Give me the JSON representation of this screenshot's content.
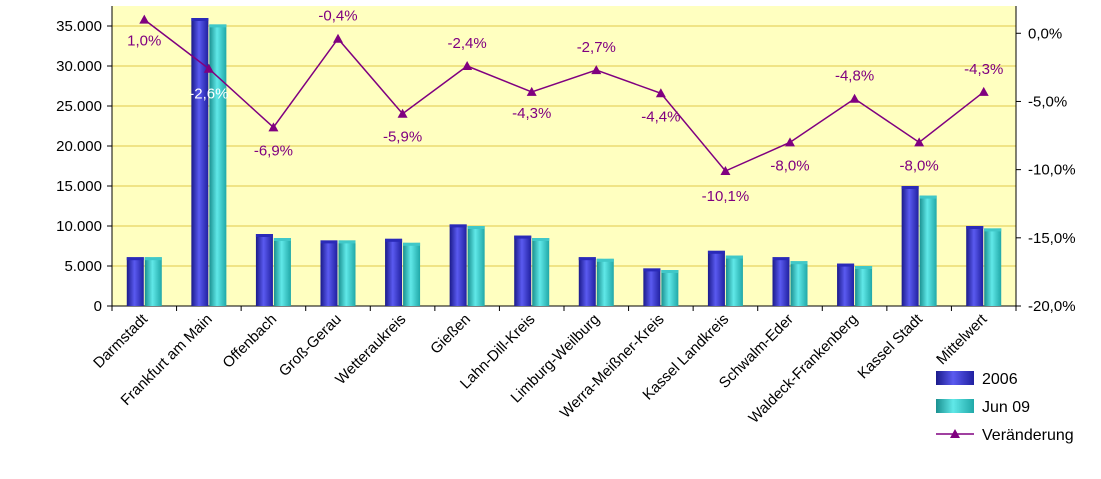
{
  "chart_data": {
    "type": "bar",
    "categories": [
      "Darmstadt",
      "Frankfurt am Main",
      "Offenbach",
      "Groß-Gerau",
      "Wetteraukreis",
      "Gießen",
      "Lahn-Dill-Kreis",
      "Limburg-Weilburg",
      "Werra-Meißner-Kreis",
      "Kassel Landkreis",
      "Schwalm-Eder",
      "Waldeck-Frankenberg",
      "Kassel Stadt",
      "Mittelwert"
    ],
    "series": [
      {
        "name": "2006",
        "type": "bar",
        "axis": "left",
        "color": "#3333cc",
        "values": [
          6100,
          36000,
          9000,
          8200,
          8400,
          10200,
          8800,
          6100,
          4700,
          6900,
          6100,
          5300,
          15000,
          10000
        ]
      },
      {
        "name": "Jun 09",
        "type": "bar",
        "axis": "left",
        "color": "#33cccc",
        "values": [
          6100,
          35200,
          8500,
          8200,
          7900,
          10000,
          8500,
          5900,
          4500,
          6300,
          5600,
          5000,
          13800,
          9700
        ]
      },
      {
        "name": "Veränderung",
        "type": "line",
        "axis": "right",
        "color": "#800080",
        "values": [
          1.0,
          -2.6,
          -6.9,
          -0.4,
          -5.9,
          -2.4,
          -4.3,
          -2.7,
          -4.4,
          -10.1,
          -8.0,
          -4.8,
          -8.0,
          -4.3
        ],
        "labels": [
          "1,0%",
          "-2,6%",
          "-6,9%",
          "-0,4%",
          "-5,9%",
          "-2,4%",
          "-4,3%",
          "-2,7%",
          "-4,4%",
          "-10,1%",
          "-8,0%",
          "-4,8%",
          "-8,0%",
          "-4,3%"
        ]
      }
    ],
    "y_left": {
      "min": 0,
      "max": 37500,
      "ticks": [
        0,
        5000,
        10000,
        15000,
        20000,
        25000,
        30000,
        35000
      ],
      "tick_labels": [
        "0",
        "5.000",
        "10.000",
        "15.000",
        "20.000",
        "25.000",
        "30.000",
        "35.000"
      ]
    },
    "y_right": {
      "min": -20,
      "max": 2,
      "ticks": [
        0,
        -5,
        -10,
        -15,
        -20
      ],
      "tick_labels": [
        "0,0%",
        "-5,0%",
        "-10,0%",
        "-15,0%",
        "-20,0%"
      ]
    },
    "legend": {
      "position": "bottom-right",
      "entries": [
        "2006",
        "Jun 09",
        "Veränderung"
      ]
    },
    "plot_background": "#ffffc0",
    "grid": true,
    "grid_color": "#e0c84a"
  }
}
